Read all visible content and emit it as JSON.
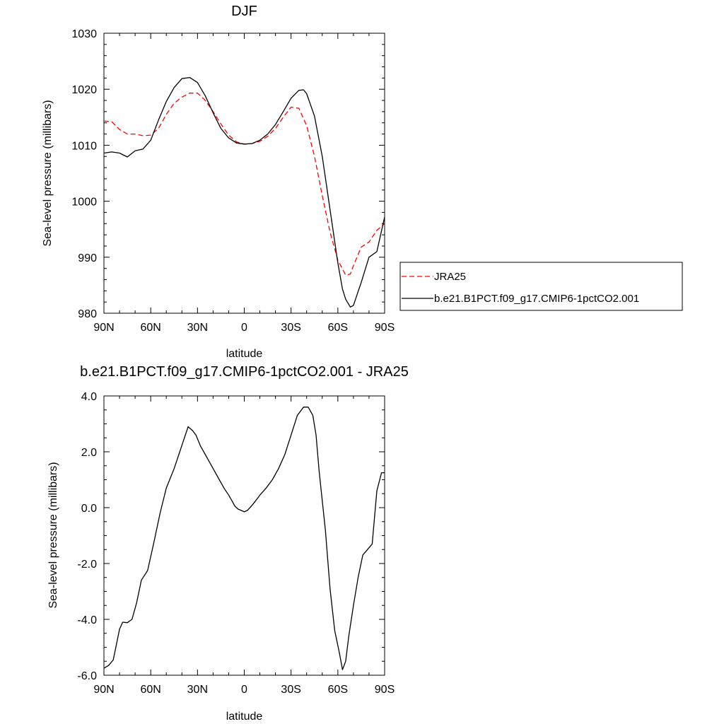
{
  "chart_data": [
    {
      "type": "line",
      "title": "DJF",
      "xlabel": "latitude",
      "ylabel": "Sea-level pressure (millibars)",
      "xlim": [
        -90,
        90
      ],
      "ylim": [
        980,
        1030
      ],
      "x_ticks": [
        -90,
        -60,
        -30,
        0,
        30,
        60,
        90
      ],
      "x_tick_labels": [
        "90N",
        "60N",
        "30N",
        "0",
        "30S",
        "60S",
        "90S"
      ],
      "y_ticks": [
        980,
        990,
        1000,
        1010,
        1020,
        1030
      ],
      "y_tick_labels": [
        "980",
        "990",
        "1000",
        "1010",
        "1020",
        "1030"
      ],
      "legend_position": "right",
      "series": [
        {
          "name": "JRA25",
          "color": "#ff0000",
          "dash": "dashed",
          "x": [
            -90,
            -85,
            -80,
            -75,
            -70,
            -65,
            -60,
            -55,
            -50,
            -45,
            -40,
            -35,
            -30,
            -25,
            -20,
            -15,
            -10,
            -5,
            0,
            5,
            10,
            15,
            20,
            25,
            30,
            35,
            40,
            45,
            50,
            55,
            60,
            65,
            68,
            70,
            75,
            80,
            85,
            90
          ],
          "y": [
            1014.3,
            1014.2,
            1012.8,
            1012.0,
            1012.0,
            1011.7,
            1011.8,
            1013.0,
            1015.5,
            1017.5,
            1018.6,
            1019.3,
            1019.3,
            1018.0,
            1016.0,
            1013.8,
            1011.8,
            1010.6,
            1010.2,
            1010.3,
            1010.7,
            1011.6,
            1013.0,
            1015.0,
            1016.8,
            1016.6,
            1013.5,
            1008.0,
            1001.0,
            994.5,
            989.5,
            986.8,
            987.0,
            988.5,
            991.8,
            992.7,
            994.8,
            996.0
          ]
        },
        {
          "name": "b.e21.B1PCT.f09_g17.CMIP6-1pctCO2.001",
          "color": "#000000",
          "dash": "solid",
          "x": [
            -90,
            -85,
            -80,
            -75,
            -70,
            -65,
            -60,
            -55,
            -50,
            -45,
            -40,
            -35,
            -30,
            -25,
            -20,
            -15,
            -10,
            -5,
            0,
            5,
            10,
            15,
            20,
            25,
            30,
            35,
            38,
            40,
            45,
            50,
            55,
            60,
            63,
            65,
            68,
            70,
            75,
            80,
            85,
            90
          ],
          "y": [
            1008.6,
            1008.8,
            1008.6,
            1007.9,
            1009.0,
            1009.3,
            1010.9,
            1014.5,
            1017.8,
            1020.3,
            1021.9,
            1022.1,
            1021.2,
            1018.8,
            1015.8,
            1013.0,
            1011.3,
            1010.4,
            1010.2,
            1010.3,
            1010.9,
            1012.0,
            1013.7,
            1016.0,
            1018.4,
            1019.8,
            1019.9,
            1019.2,
            1015.2,
            1008.0,
            998.5,
            989.0,
            984.3,
            982.5,
            981.1,
            981.4,
            985.5,
            990.0,
            991.0,
            997.2
          ]
        }
      ]
    },
    {
      "type": "line",
      "title": "b.e21.B1PCT.f09_g17.CMIP6-1pctCO2.001 - JRA25",
      "xlabel": "latitude",
      "ylabel": "Sea-level pressure (millibars)",
      "xlim": [
        -90,
        90
      ],
      "ylim": [
        -6,
        4
      ],
      "x_ticks": [
        -90,
        -60,
        -30,
        0,
        30,
        60,
        90
      ],
      "x_tick_labels": [
        "90N",
        "60N",
        "30N",
        "0",
        "30S",
        "60S",
        "90S"
      ],
      "y_ticks": [
        -6,
        -4,
        -2,
        0,
        2,
        4
      ],
      "y_tick_labels": [
        "-6.0",
        "-4.0",
        "-2.0",
        "0.0",
        "2.0",
        "4.0"
      ],
      "series": [
        {
          "color": "#000000",
          "dash": "solid",
          "x": [
            -90,
            -87,
            -84,
            -80,
            -78,
            -75,
            -72,
            -69,
            -66,
            -62,
            -58,
            -54,
            -50,
            -45,
            -42,
            -39,
            -36,
            -33,
            -31,
            -28,
            -25,
            -22,
            -19,
            -16,
            -13,
            -10,
            -8,
            -6,
            -4,
            -2,
            0,
            2,
            4,
            7,
            10,
            14,
            18,
            22,
            26,
            30,
            34,
            38,
            41,
            44,
            46,
            48,
            52,
            55,
            58,
            61,
            63,
            65,
            67,
            70,
            73,
            76,
            79,
            82,
            85,
            88,
            90
          ],
          "y": [
            -5.75,
            -5.65,
            -5.45,
            -4.35,
            -4.1,
            -4.12,
            -4.0,
            -3.4,
            -2.6,
            -2.25,
            -1.25,
            -0.2,
            0.7,
            1.4,
            1.9,
            2.4,
            2.9,
            2.75,
            2.6,
            2.2,
            1.9,
            1.6,
            1.3,
            1.0,
            0.7,
            0.45,
            0.25,
            0.05,
            -0.05,
            -0.1,
            -0.15,
            -0.1,
            0.02,
            0.22,
            0.45,
            0.7,
            1.0,
            1.4,
            1.9,
            2.6,
            3.3,
            3.6,
            3.6,
            3.3,
            2.6,
            1.3,
            -0.8,
            -2.9,
            -4.4,
            -5.2,
            -5.8,
            -5.5,
            -4.6,
            -3.5,
            -2.5,
            -1.7,
            -1.5,
            -1.3,
            0.6,
            1.25,
            1.25
          ]
        }
      ]
    }
  ]
}
